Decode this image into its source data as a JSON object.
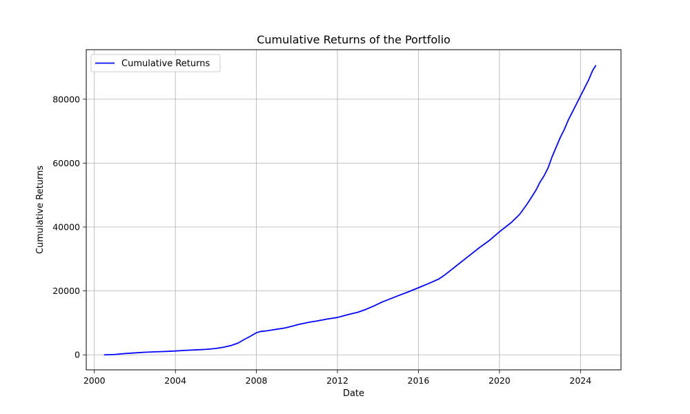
{
  "chart_data": {
    "type": "line",
    "title": "Cumulative Returns of the Portfolio",
    "xlabel": "Date",
    "ylabel": "Cumulative Returns",
    "xlim": [
      1999.6,
      2026.0
    ],
    "ylim": [
      -4700,
      95500
    ],
    "x_ticks": [
      2000,
      2004,
      2008,
      2012,
      2016,
      2020,
      2024
    ],
    "x_tick_labels": [
      "2000",
      "2004",
      "2008",
      "2012",
      "2016",
      "2020",
      "2024"
    ],
    "y_ticks": [
      0,
      20000,
      40000,
      60000,
      80000
    ],
    "y_tick_labels": [
      "0",
      "20000",
      "40000",
      "60000",
      "80000"
    ],
    "grid": true,
    "legend_position": "top-left",
    "series": [
      {
        "name": "Cumulative Returns",
        "color": "#0000ff",
        "x": [
          2000.5,
          2001.0,
          2001.5,
          2002.0,
          2002.5,
          2003.0,
          2003.5,
          2004.0,
          2004.5,
          2005.0,
          2005.5,
          2006.0,
          2006.4,
          2006.8,
          2007.1,
          2007.4,
          2007.7,
          2008.0,
          2008.2,
          2008.5,
          2008.8,
          2009.0,
          2009.4,
          2009.8,
          2010.0,
          2010.3,
          2010.6,
          2011.0,
          2011.5,
          2012.0,
          2012.3,
          2012.6,
          2013.0,
          2013.4,
          2013.8,
          2014.2,
          2014.6,
          2015.0,
          2015.5,
          2016.0,
          2016.5,
          2017.0,
          2017.3,
          2017.6,
          2018.0,
          2018.5,
          2019.0,
          2019.5,
          2020.0,
          2020.3,
          2020.6,
          2021.0,
          2021.4,
          2021.8,
          2022.0,
          2022.2,
          2022.4,
          2022.6,
          2022.8,
          2023.0,
          2023.2,
          2023.4,
          2023.6,
          2023.8,
          2024.0,
          2024.2,
          2024.4,
          2024.6,
          2024.75
        ],
        "y": [
          0,
          100,
          400,
          600,
          800,
          950,
          1050,
          1200,
          1400,
          1550,
          1700,
          2000,
          2400,
          3000,
          3700,
          4800,
          5800,
          6900,
          7300,
          7500,
          7800,
          8000,
          8400,
          9000,
          9400,
          9800,
          10200,
          10600,
          11200,
          11700,
          12200,
          12700,
          13300,
          14200,
          15300,
          16500,
          17500,
          18500,
          19700,
          21000,
          22300,
          23700,
          25000,
          26500,
          28500,
          31000,
          33500,
          35800,
          38500,
          40000,
          41500,
          44000,
          47500,
          51500,
          54000,
          56000,
          58500,
          62000,
          65000,
          68000,
          70500,
          73500,
          76000,
          78500,
          81000,
          83500,
          86000,
          89000,
          90500
        ]
      }
    ]
  }
}
